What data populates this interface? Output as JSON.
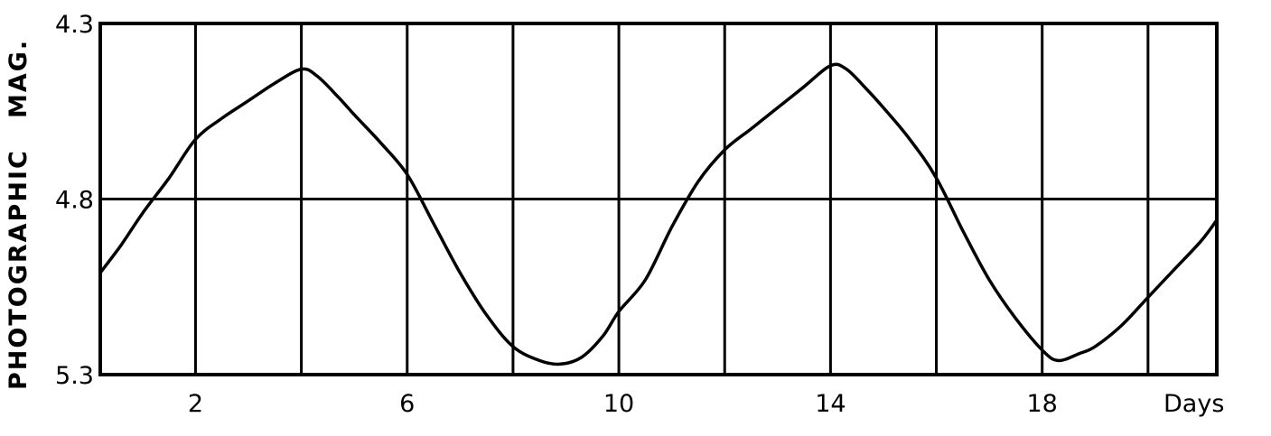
{
  "chart_data": {
    "type": "line",
    "title": "",
    "xlabel": "Days",
    "ylabel": "PHOTOGRAPHIC   MAG.",
    "xlim": [
      0.2,
      21.3
    ],
    "ylim": [
      5.3,
      4.3
    ],
    "y_inverted": true,
    "grid": true,
    "x_gridlines": [
      2,
      4,
      6,
      8,
      10,
      12,
      14,
      16,
      18,
      20
    ],
    "y_gridlines": [
      4.8
    ],
    "x_tick_labels": [
      "2",
      "6",
      "10",
      "14",
      "18"
    ],
    "x_tick_values": [
      2,
      6,
      10,
      14,
      18
    ],
    "y_tick_labels": [
      "4.3",
      "4.8",
      "5.3"
    ],
    "y_tick_values": [
      4.3,
      4.8,
      5.3
    ],
    "series": [
      {
        "x": [
          0.2,
          0.6,
          1.0,
          1.5,
          2.0,
          2.5,
          3.0,
          3.5,
          4.0,
          4.3,
          4.7,
          5.0,
          5.5,
          6.0,
          6.5,
          7.0,
          7.5,
          8.0,
          8.5,
          8.9,
          9.3,
          9.7,
          10.0,
          10.5,
          11.0,
          11.5,
          12.0,
          12.5,
          13.0,
          13.5,
          14.0,
          14.3,
          14.7,
          15.0,
          15.5,
          16.0,
          16.5,
          17.0,
          17.5,
          18.0,
          18.3,
          18.7,
          19.0,
          19.5,
          20.0,
          20.5,
          21.0,
          21.3
        ],
        "y": [
          5.01,
          4.93,
          4.84,
          4.74,
          4.63,
          4.57,
          4.52,
          4.47,
          4.43,
          4.45,
          4.51,
          4.56,
          4.64,
          4.73,
          4.87,
          5.01,
          5.13,
          5.22,
          5.26,
          5.27,
          5.25,
          5.19,
          5.12,
          5.03,
          4.88,
          4.75,
          4.66,
          4.6,
          4.54,
          4.48,
          4.42,
          4.43,
          4.49,
          4.54,
          4.63,
          4.74,
          4.89,
          5.03,
          5.14,
          5.23,
          5.26,
          5.24,
          5.22,
          5.16,
          5.08,
          5.0,
          4.92,
          4.86
        ]
      }
    ]
  }
}
